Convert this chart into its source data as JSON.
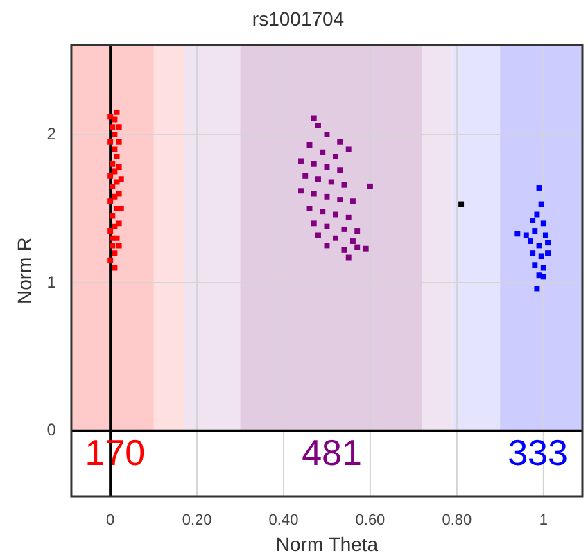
{
  "chart_data": {
    "type": "scatter",
    "title": "rs1001704",
    "xlabel": "Norm Theta",
    "ylabel": "Norm R",
    "xlim": [
      -0.09,
      1.09
    ],
    "ylim": [
      -0.44,
      2.6
    ],
    "xticks": [
      0,
      {
        "value": 0.2,
        "label": "0.20"
      },
      {
        "value": 0.4,
        "label": "0.40"
      },
      {
        "value": 0.6,
        "label": "0.60"
      },
      {
        "value": 0.8,
        "label": "0.80"
      },
      1
    ],
    "yticks": [
      0,
      1,
      2
    ],
    "grid": true,
    "legend": false,
    "marker": "square",
    "bands": [
      {
        "axis": "x",
        "from": -0.09,
        "to": 0.17,
        "color": "#ffe0e0"
      },
      {
        "axis": "x",
        "from": -0.09,
        "to": 0.1,
        "color": "#ffcaca"
      },
      {
        "axis": "x",
        "from": 0.17,
        "to": 0.79,
        "color": "#f0e4f0"
      },
      {
        "axis": "x",
        "from": 0.3,
        "to": 0.72,
        "color": "#e2cce2"
      },
      {
        "axis": "x",
        "from": 0.79,
        "to": 1.09,
        "color": "#e4e4ff"
      },
      {
        "axis": "x",
        "from": 0.9,
        "to": 1.09,
        "color": "#ccccff"
      }
    ],
    "annotations": [
      "170",
      "481",
      "333"
    ],
    "series": [
      {
        "color": "#ff0000",
        "x": [
          0,
          0.01,
          0.005,
          0.015,
          0,
          0.01,
          0.02,
          0.005,
          0.015,
          0.025,
          0,
          0.01,
          0.02,
          0.005,
          0.015,
          0.025,
          0,
          0.01,
          0.02,
          0.005,
          0.015,
          0.01,
          0,
          0.02,
          0.01,
          0.005,
          0.02,
          0.01,
          0.015,
          0,
          0.005,
          0.02,
          0.01
        ],
        "values": [
          1.15,
          1.2,
          1.25,
          1.3,
          1.35,
          1.38,
          1.4,
          1.45,
          1.5,
          1.5,
          1.55,
          1.58,
          1.6,
          1.65,
          1.68,
          1.7,
          1.72,
          1.75,
          1.78,
          1.8,
          1.85,
          1.9,
          1.95,
          1.95,
          2.0,
          2.05,
          2.05,
          2.1,
          2.15,
          2.12,
          1.3,
          1.25,
          1.1
        ]
      },
      {
        "color": "#800080",
        "x": [
          0.47,
          0.48,
          0.5,
          0.53,
          0.46,
          0.55,
          0.49,
          0.52,
          0.44,
          0.47,
          0.5,
          0.53,
          0.45,
          0.48,
          0.51,
          0.54,
          0.6,
          0.44,
          0.47,
          0.5,
          0.53,
          0.56,
          0.46,
          0.49,
          0.52,
          0.55,
          0.47,
          0.5,
          0.54,
          0.57,
          0.48,
          0.52,
          0.56,
          0.5,
          0.54,
          0.57,
          0.55,
          0.59
        ],
        "values": [
          2.11,
          2.06,
          2.0,
          1.95,
          1.93,
          1.9,
          1.88,
          1.85,
          1.82,
          1.8,
          1.78,
          1.76,
          1.72,
          1.7,
          1.68,
          1.66,
          1.65,
          1.62,
          1.6,
          1.58,
          1.56,
          1.55,
          1.5,
          1.48,
          1.46,
          1.44,
          1.4,
          1.38,
          1.36,
          1.35,
          1.32,
          1.3,
          1.28,
          1.25,
          1.22,
          1.24,
          1.17,
          1.23
        ]
      },
      {
        "color": "#0000ff",
        "x": [
          0.99,
          0.995,
          0.985,
          0.975,
          1.0,
          0.94,
          0.96,
          0.98,
          1.005,
          0.97,
          0.99,
          1.01,
          0.975,
          0.995,
          1.01,
          0.98,
          1.0,
          0.99,
          1.0,
          0.985
        ],
        "values": [
          1.64,
          1.53,
          1.46,
          1.42,
          1.4,
          1.33,
          1.32,
          1.35,
          1.32,
          1.28,
          1.25,
          1.27,
          1.2,
          1.18,
          1.2,
          1.12,
          1.1,
          1.05,
          1.04,
          0.96
        ]
      },
      {
        "color": "#000000",
        "x": [
          0.81
        ],
        "values": [
          1.53
        ]
      }
    ]
  }
}
